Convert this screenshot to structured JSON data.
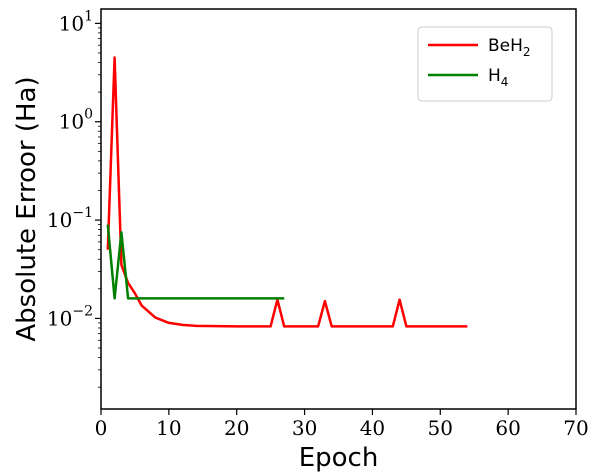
{
  "chart_data": {
    "type": "line",
    "title": "",
    "xlabel": "Epoch",
    "ylabel": "Absolute Erroor (Ha)",
    "xlim": [
      0,
      70
    ],
    "ylim": [
      0.0012,
      14
    ],
    "yscale": "log",
    "xticks": [
      "0",
      "10",
      "20",
      "30",
      "40",
      "50",
      "60",
      "70"
    ],
    "yticks": [
      {
        "base": "10",
        "exp": "1",
        "value": 10
      },
      {
        "base": "10",
        "exp": "0",
        "value": 1
      },
      {
        "base": "10",
        "exp": "−1",
        "value": 0.1
      },
      {
        "base": "10",
        "exp": "−2",
        "value": 0.01
      }
    ],
    "grid": false,
    "legend_position": "top-right",
    "series": [
      {
        "name": "BeH",
        "name_sub": "2",
        "color": "#ff0000",
        "x": [
          1,
          2,
          3,
          4,
          5,
          6,
          8,
          10,
          12,
          14,
          20,
          25,
          26,
          27,
          32,
          33,
          34,
          43,
          44,
          45,
          50,
          54
        ],
        "y": [
          0.05,
          4.5,
          0.035,
          0.023,
          0.018,
          0.0135,
          0.0102,
          0.009,
          0.0086,
          0.0084,
          0.0083,
          0.0083,
          0.0155,
          0.0083,
          0.0083,
          0.015,
          0.0083,
          0.0083,
          0.0155,
          0.0083,
          0.0083,
          0.0083
        ]
      },
      {
        "name": "H",
        "name_sub": "4",
        "color": "#008000",
        "x": [
          1,
          2,
          3,
          4,
          10,
          20,
          27
        ],
        "y": [
          0.09,
          0.016,
          0.075,
          0.016,
          0.016,
          0.016,
          0.016
        ]
      }
    ]
  }
}
